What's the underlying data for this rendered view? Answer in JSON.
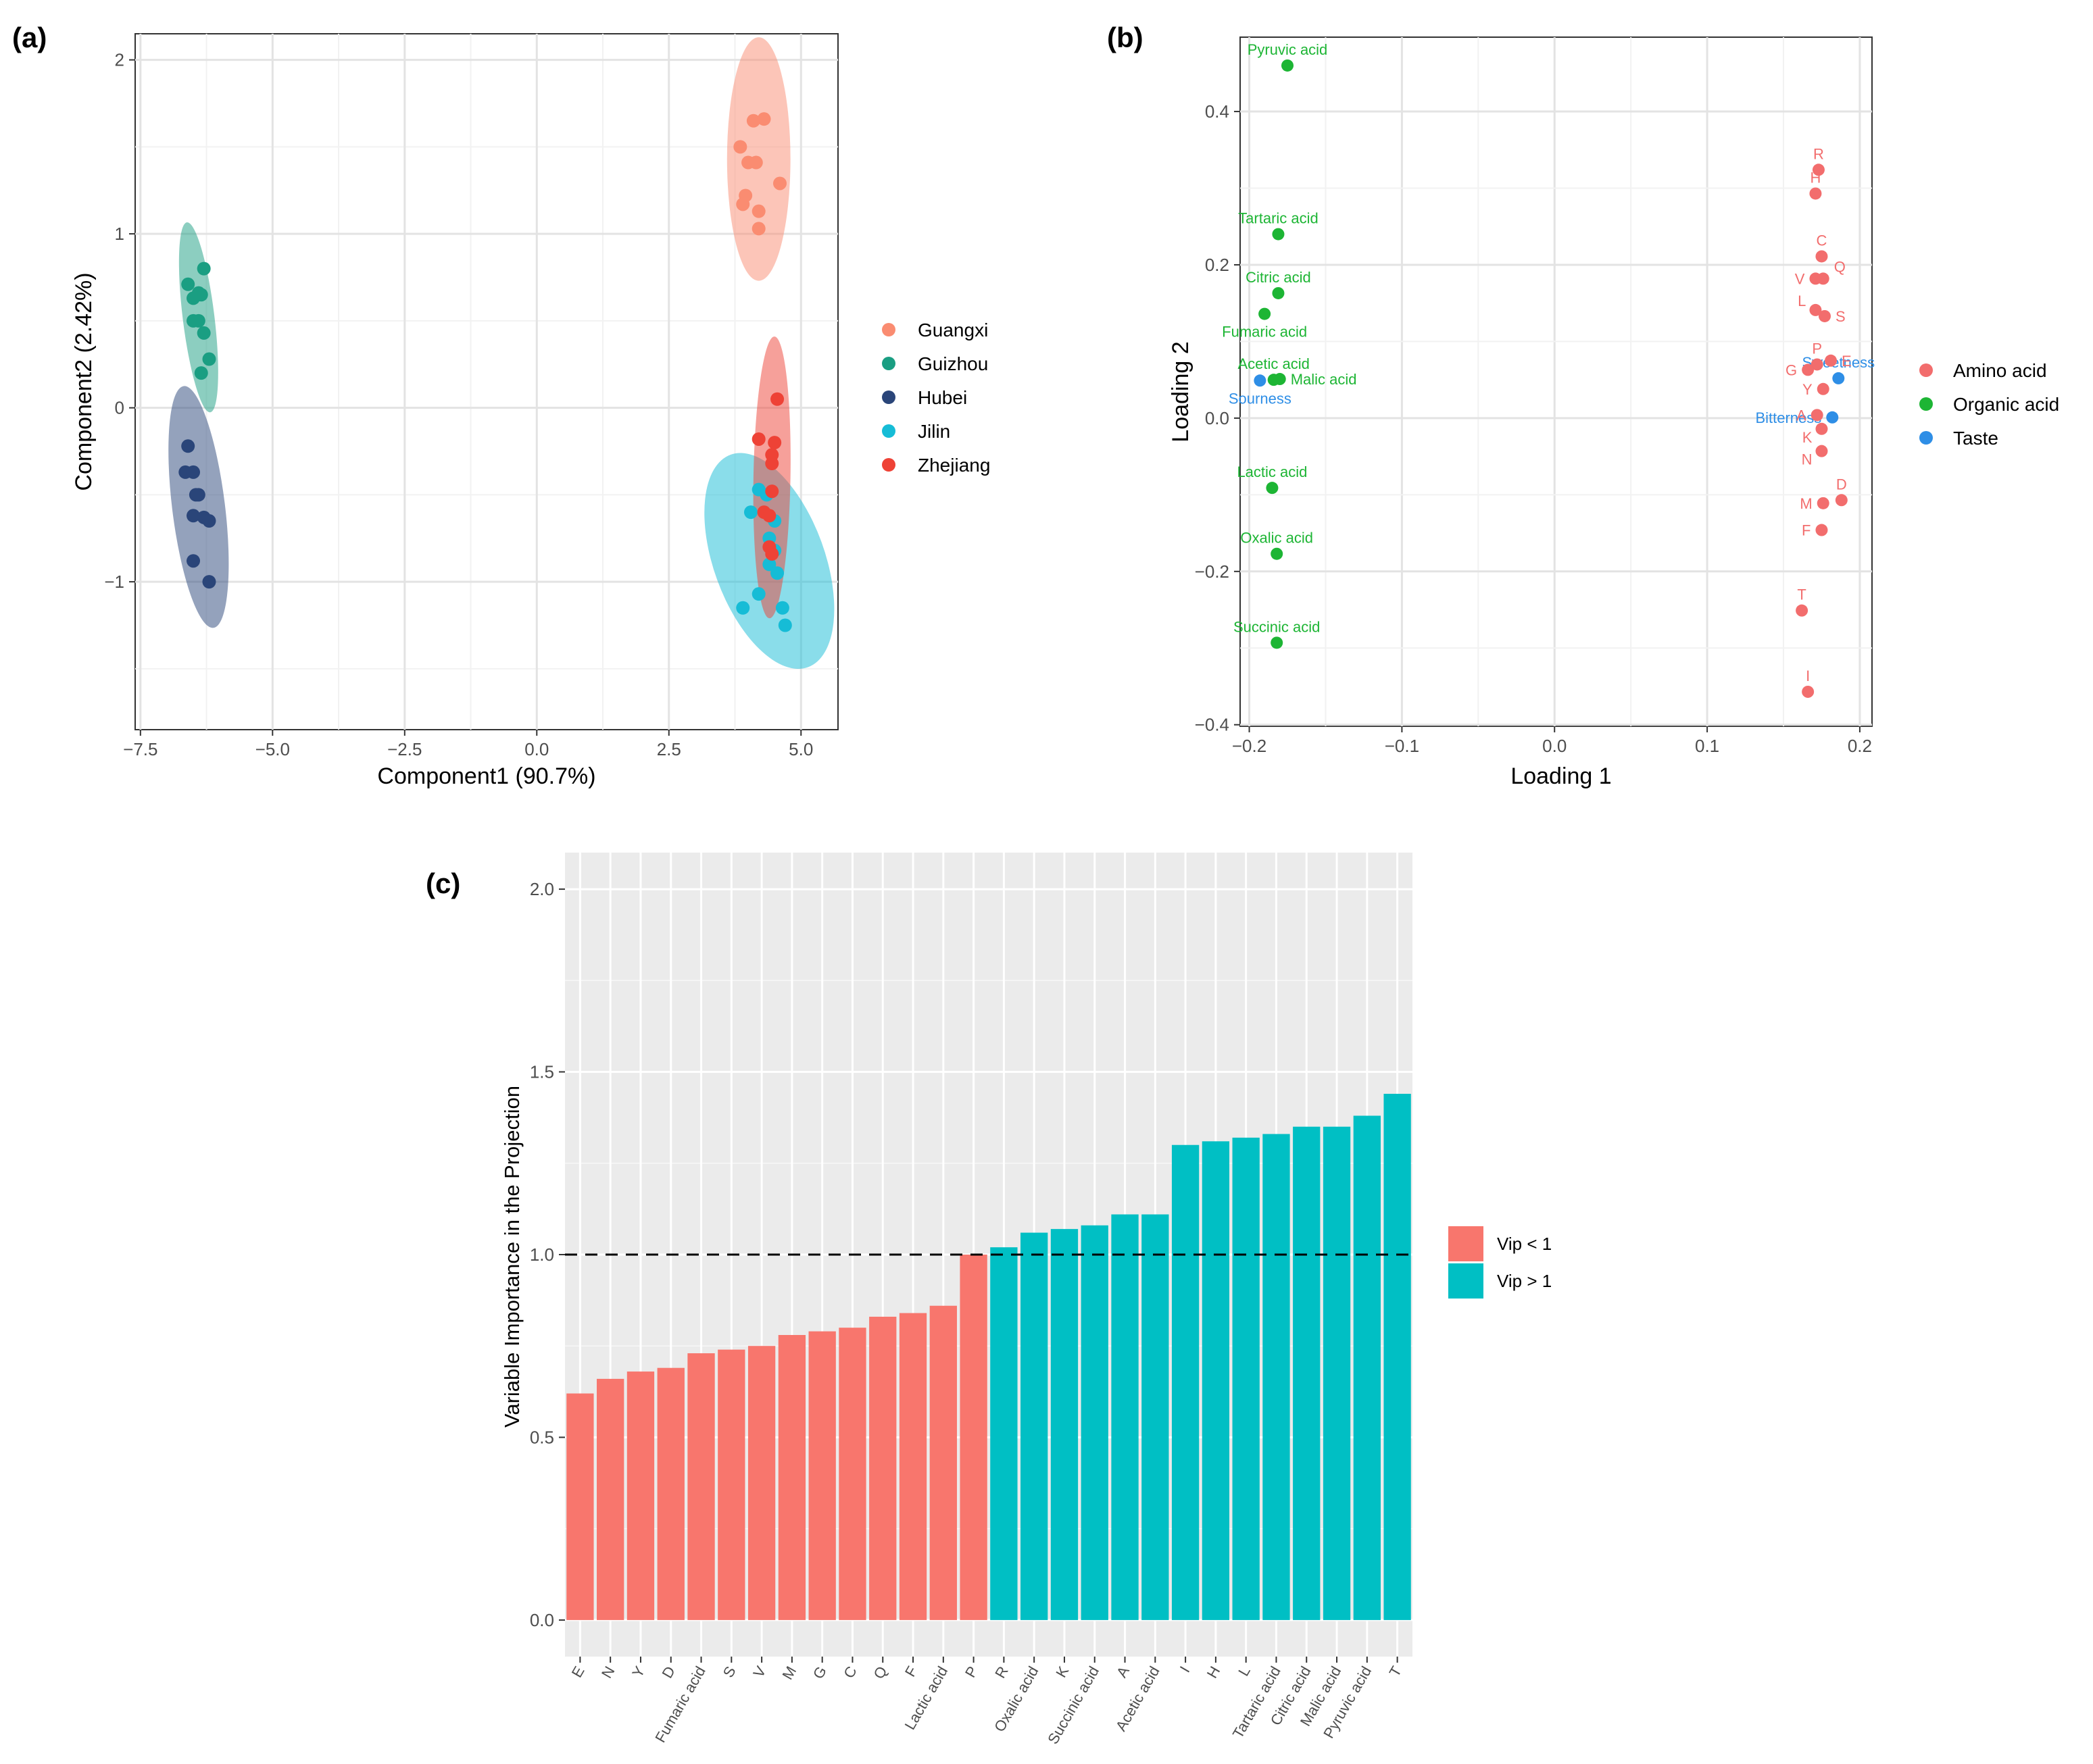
{
  "panels": {
    "a": "(a)",
    "b": "(b)",
    "c": "(c)"
  },
  "colors": {
    "Guangxi": "#fa8c71",
    "Guizhou": "#1a9e82",
    "Hubei": "#2a4579",
    "Jilin": "#16bcd6",
    "Zhejiang": "#ee4236",
    "Amino acid": "#f26d6d",
    "Organic acid": "#1db534",
    "Taste": "#2e8ee6",
    "vip_low": "#f8766d",
    "vip_high": "#00bfc4"
  },
  "chart_data": [
    {
      "id": "a",
      "type": "scatter",
      "title": "",
      "xlabel": "Component1 (90.7%)",
      "ylabel": "Component2 (2.42%)",
      "xlim": [
        -7.6,
        5.7
      ],
      "ylim": [
        -1.85,
        2.15
      ],
      "xticks": [
        -7.5,
        -5.0,
        -2.5,
        0.0,
        2.5,
        5.0
      ],
      "xtick_labels": [
        "−7.5",
        "−5.0",
        "−2.5",
        "0.0",
        "2.5",
        "5.0"
      ],
      "yticks": [
        -1,
        0,
        1,
        2
      ],
      "ytick_labels": [
        "−1",
        "0",
        "1",
        "2"
      ],
      "legend": [
        "Guangxi",
        "Guizhou",
        "Hubei",
        "Jilin",
        "Zhejiang"
      ],
      "series": [
        {
          "name": "Guangxi",
          "points": [
            [
              4.1,
              1.65
            ],
            [
              4.3,
              1.66
            ],
            [
              3.85,
              1.5
            ],
            [
              4.0,
              1.41
            ],
            [
              4.15,
              1.41
            ],
            [
              3.95,
              1.22
            ],
            [
              3.9,
              1.17
            ],
            [
              4.2,
              1.13
            ],
            [
              4.6,
              1.29
            ],
            [
              4.2,
              1.03
            ]
          ],
          "ellipse": {
            "cx": 4.2,
            "cy": 1.43,
            "rx": 0.6,
            "ry": 0.7,
            "angle": 0
          }
        },
        {
          "name": "Guizhou",
          "points": [
            [
              -6.6,
              0.71
            ],
            [
              -6.3,
              0.8
            ],
            [
              -6.5,
              0.63
            ],
            [
              -6.4,
              0.66
            ],
            [
              -6.35,
              0.65
            ],
            [
              -6.5,
              0.5
            ],
            [
              -6.4,
              0.5
            ],
            [
              -6.3,
              0.43
            ],
            [
              -6.2,
              0.28
            ],
            [
              -6.35,
              0.2
            ]
          ],
          "ellipse": {
            "cx": -6.4,
            "cy": 0.52,
            "rx": 0.3,
            "ry": 0.55,
            "angle": -7
          }
        },
        {
          "name": "Hubei",
          "points": [
            [
              -6.6,
              -0.22
            ],
            [
              -6.65,
              -0.37
            ],
            [
              -6.5,
              -0.37
            ],
            [
              -6.45,
              -0.5
            ],
            [
              -6.4,
              -0.5
            ],
            [
              -6.5,
              -0.62
            ],
            [
              -6.3,
              -0.63
            ],
            [
              -6.2,
              -0.65
            ],
            [
              -6.5,
              -0.88
            ],
            [
              -6.2,
              -1.0
            ]
          ],
          "ellipse": {
            "cx": -6.4,
            "cy": -0.57,
            "rx": 0.5,
            "ry": 0.7,
            "angle": -7
          }
        },
        {
          "name": "Jilin",
          "points": [
            [
              4.2,
              -0.47
            ],
            [
              4.35,
              -0.5
            ],
            [
              4.05,
              -0.6
            ],
            [
              4.5,
              -0.65
            ],
            [
              4.4,
              -0.75
            ],
            [
              4.5,
              -0.82
            ],
            [
              4.4,
              -0.9
            ],
            [
              4.55,
              -0.95
            ],
            [
              4.2,
              -1.07
            ],
            [
              3.9,
              -1.15
            ],
            [
              4.65,
              -1.15
            ],
            [
              4.7,
              -1.25
            ]
          ],
          "ellipse": {
            "cx": 4.4,
            "cy": -0.88,
            "rx": 1.05,
            "ry": 0.65,
            "angle": -20
          }
        },
        {
          "name": "Zhejiang",
          "points": [
            [
              4.55,
              0.05
            ],
            [
              4.5,
              -0.2
            ],
            [
              4.2,
              -0.18
            ],
            [
              4.45,
              -0.27
            ],
            [
              4.45,
              -0.32
            ],
            [
              4.45,
              -0.48
            ],
            [
              4.3,
              -0.6
            ],
            [
              4.4,
              -0.62
            ],
            [
              4.4,
              -0.8
            ],
            [
              4.45,
              -0.84
            ]
          ],
          "ellipse": {
            "cx": 4.45,
            "cy": -0.4,
            "rx": 0.35,
            "ry": 0.81,
            "angle": 1
          }
        }
      ]
    },
    {
      "id": "b",
      "type": "scatter",
      "title": "",
      "xlabel": "Loading 1",
      "ylabel": "Loading 2",
      "xlim": [
        -0.206,
        0.208
      ],
      "ylim": [
        -0.402,
        0.497
      ],
      "xticks": [
        -0.2,
        -0.1,
        0.0,
        0.1,
        0.2
      ],
      "xtick_labels": [
        "−0.2",
        "−0.1",
        "0.0",
        "0.1",
        "0.2"
      ],
      "yticks": [
        -0.4,
        -0.2,
        0.0,
        0.2,
        0.4
      ],
      "ytick_labels": [
        "−0.4",
        "−0.2",
        "0.0",
        "0.2",
        "0.4"
      ],
      "legend": [
        "Amino acid",
        "Organic acid",
        "Taste"
      ],
      "points": [
        {
          "label": "Pyruvic acid",
          "x": -0.175,
          "y": 0.46,
          "group": "Organic acid",
          "pos": "top"
        },
        {
          "label": "Tartaric acid",
          "x": -0.181,
          "y": 0.24,
          "group": "Organic acid",
          "pos": "top"
        },
        {
          "label": "Citric acid",
          "x": -0.181,
          "y": 0.163,
          "group": "Organic acid",
          "pos": "top"
        },
        {
          "label": "Fumaric acid",
          "x": -0.19,
          "y": 0.136,
          "group": "Organic acid",
          "pos": "below"
        },
        {
          "label": "Acetic acid",
          "x": -0.184,
          "y": 0.05,
          "group": "Organic acid",
          "pos": "top"
        },
        {
          "label": "Malic acid",
          "x": -0.18,
          "y": 0.051,
          "group": "Organic acid",
          "pos": "right"
        },
        {
          "label": "Lactic acid",
          "x": -0.185,
          "y": -0.091,
          "group": "Organic acid",
          "pos": "top"
        },
        {
          "label": "Oxalic acid",
          "x": -0.182,
          "y": -0.177,
          "group": "Organic acid",
          "pos": "top"
        },
        {
          "label": "Succinic acid",
          "x": -0.182,
          "y": -0.293,
          "group": "Organic acid",
          "pos": "top"
        },
        {
          "label": "Sourness",
          "x": -0.193,
          "y": 0.049,
          "group": "Taste",
          "pos": "below"
        },
        {
          "label": "Sweetness",
          "x": 0.186,
          "y": 0.052,
          "group": "Taste",
          "pos": "top"
        },
        {
          "label": "Bitterness",
          "x": 0.182,
          "y": 0.001,
          "group": "Taste",
          "pos": "left"
        },
        {
          "label": "R",
          "x": 0.173,
          "y": 0.324,
          "group": "Amino acid",
          "pos": "top"
        },
        {
          "label": "H",
          "x": 0.171,
          "y": 0.293,
          "group": "Amino acid",
          "pos": "top"
        },
        {
          "label": "C",
          "x": 0.175,
          "y": 0.211,
          "group": "Amino acid",
          "pos": "top"
        },
        {
          "label": "Q",
          "x": 0.176,
          "y": 0.182,
          "group": "Amino acid",
          "pos": "topright"
        },
        {
          "label": "V",
          "x": 0.171,
          "y": 0.182,
          "group": "Amino acid",
          "pos": "left"
        },
        {
          "label": "L",
          "x": 0.171,
          "y": 0.141,
          "group": "Amino acid",
          "pos": "topleft"
        },
        {
          "label": "S",
          "x": 0.177,
          "y": 0.133,
          "group": "Amino acid",
          "pos": "right"
        },
        {
          "label": "P",
          "x": 0.172,
          "y": 0.07,
          "group": "Amino acid",
          "pos": "top"
        },
        {
          "label": "E",
          "x": 0.181,
          "y": 0.075,
          "group": "Amino acid",
          "pos": "right"
        },
        {
          "label": "G",
          "x": 0.166,
          "y": 0.063,
          "group": "Amino acid",
          "pos": "left"
        },
        {
          "label": "Y",
          "x": 0.176,
          "y": 0.038,
          "group": "Amino acid",
          "pos": "left"
        },
        {
          "label": "A",
          "x": 0.172,
          "y": 0.004,
          "group": "Amino acid",
          "pos": "left"
        },
        {
          "label": "K",
          "x": 0.175,
          "y": -0.014,
          "group": "Amino acid",
          "pos": "belowleft"
        },
        {
          "label": "N",
          "x": 0.175,
          "y": -0.043,
          "group": "Amino acid",
          "pos": "belowleft"
        },
        {
          "label": "D",
          "x": 0.188,
          "y": -0.107,
          "group": "Amino acid",
          "pos": "top"
        },
        {
          "label": "M",
          "x": 0.176,
          "y": -0.111,
          "group": "Amino acid",
          "pos": "left"
        },
        {
          "label": "F",
          "x": 0.175,
          "y": -0.146,
          "group": "Amino acid",
          "pos": "left"
        },
        {
          "label": "T",
          "x": 0.162,
          "y": -0.251,
          "group": "Amino acid",
          "pos": "top"
        },
        {
          "label": "I",
          "x": 0.166,
          "y": -0.357,
          "group": "Amino acid",
          "pos": "top"
        }
      ]
    },
    {
      "id": "c",
      "type": "bar",
      "title": "",
      "xlabel": "",
      "ylabel": "Variable Importance in the Projection",
      "ylim": [
        -0.1,
        2.1
      ],
      "yticks": [
        0.0,
        0.5,
        1.0,
        1.5,
        2.0
      ],
      "ytick_labels": [
        "0.0",
        "0.5",
        "1.0",
        "1.5",
        "2.0"
      ],
      "threshold": 1.0,
      "categories": [
        "E",
        "N",
        "Y",
        "D",
        "Fumaric acid",
        "S",
        "V",
        "M",
        "G",
        "C",
        "Q",
        "F",
        "Lactic acid",
        "P",
        "R",
        "Oxalic acid",
        "K",
        "Succinic acid",
        "A",
        "Acetic acid",
        "I",
        "H",
        "L",
        "Tartaric acid",
        "Citric acid",
        "Malic acid",
        "Pyruvic acid",
        "T"
      ],
      "values": [
        0.62,
        0.66,
        0.68,
        0.69,
        0.73,
        0.74,
        0.75,
        0.78,
        0.79,
        0.8,
        0.83,
        0.84,
        0.86,
        1.0,
        1.02,
        1.06,
        1.07,
        1.08,
        1.11,
        1.11,
        1.3,
        1.31,
        1.32,
        1.33,
        1.35,
        1.35,
        1.38,
        1.44
      ],
      "groups": [
        "Vip < 1",
        "Vip < 1",
        "Vip < 1",
        "Vip < 1",
        "Vip < 1",
        "Vip < 1",
        "Vip < 1",
        "Vip < 1",
        "Vip < 1",
        "Vip < 1",
        "Vip < 1",
        "Vip < 1",
        "Vip < 1",
        "Vip < 1",
        "Vip > 1",
        "Vip > 1",
        "Vip > 1",
        "Vip > 1",
        "Vip > 1",
        "Vip > 1",
        "Vip > 1",
        "Vip > 1",
        "Vip > 1",
        "Vip > 1",
        "Vip > 1",
        "Vip > 1",
        "Vip > 1",
        "Vip > 1"
      ],
      "legend": [
        "Vip < 1",
        "Vip > 1"
      ]
    }
  ]
}
